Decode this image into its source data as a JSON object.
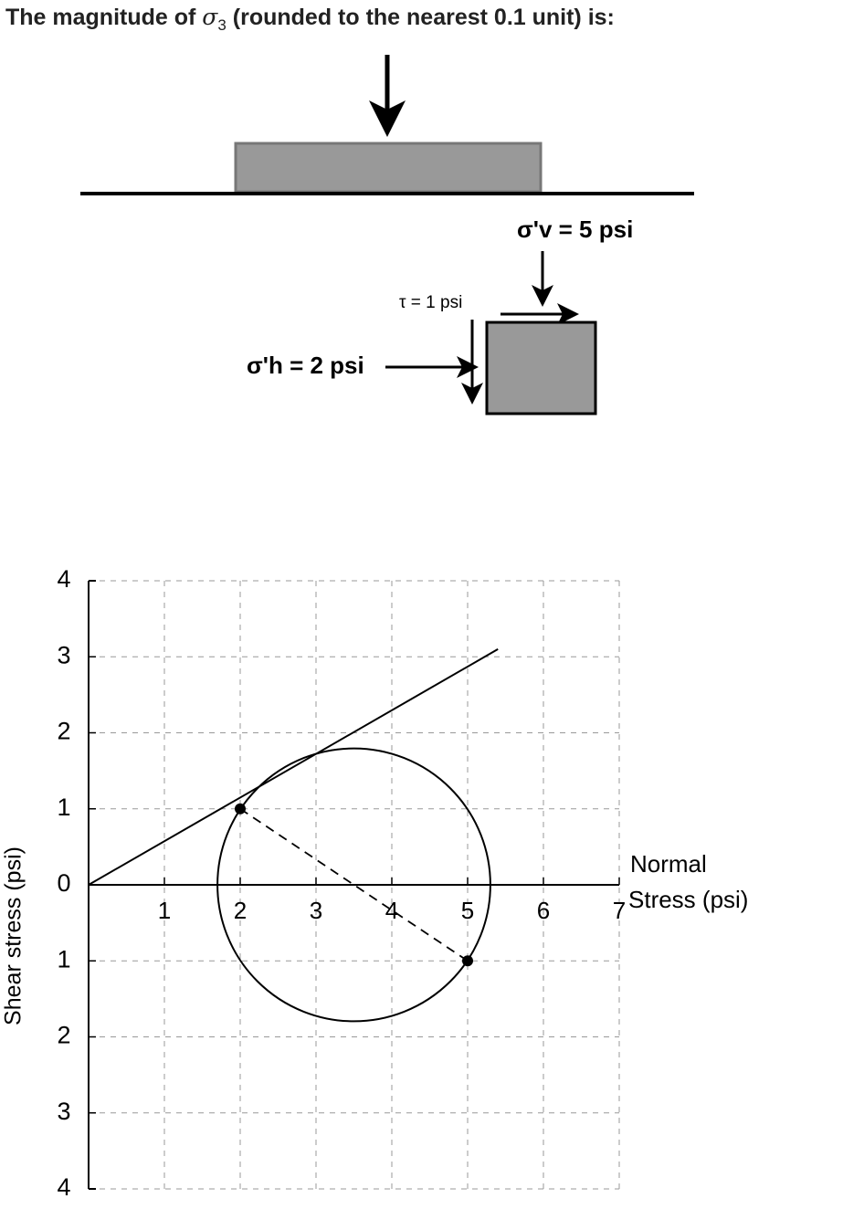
{
  "question": {
    "before": "The magnitude of",
    "symbol": "σ",
    "subscript": "3",
    "after": "(rounded to the nearest 0.1 unit) is:"
  },
  "diagram": {
    "sigma_v": "σ'v = 5 psi",
    "tau": "τ = 1 psi",
    "sigma_h": "σ'h = 2 psi"
  },
  "chart_data": {
    "type": "scatter",
    "xlabel": [
      "Normal",
      "Stress (psi)"
    ],
    "ylabel": "Shear stress (psi)",
    "xlim": [
      0,
      7
    ],
    "ylim": [
      -4,
      4
    ],
    "xticks": [
      1,
      2,
      3,
      4,
      5,
      6,
      7
    ],
    "yticks": [
      {
        "value": -4,
        "label": "4"
      },
      {
        "value": -3,
        "label": "3"
      },
      {
        "value": -2,
        "label": "2"
      },
      {
        "value": -1,
        "label": "1"
      },
      0,
      1,
      2,
      3,
      4
    ],
    "grid": true,
    "points": {
      "x": [
        2,
        5
      ],
      "y": [
        1,
        -1
      ]
    },
    "circle": {
      "center": 3.5,
      "radius": 1.8
    },
    "envelope": {
      "x": [
        0,
        5.4
      ],
      "y": [
        0,
        3.1
      ]
    }
  }
}
